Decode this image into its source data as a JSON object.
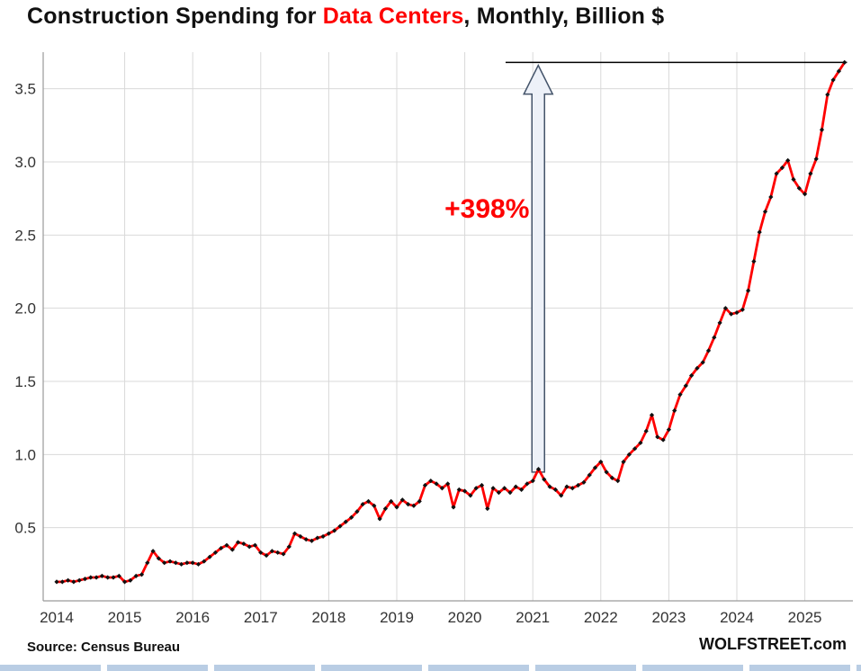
{
  "title": {
    "prefix": "Construction Spending for ",
    "highlight": "Data Centers",
    "suffix": ", Monthly, Billion $"
  },
  "footer": {
    "source": "Source: Census Bureau",
    "site": "WOLFSTREET.com"
  },
  "colors": {
    "line": "#FE0000",
    "accent_red": "#FE0000",
    "marker": "#111111",
    "grid": "#d9d9d9",
    "axis": "#9a9a9a",
    "arrow_fill": "#edf1f8",
    "arrow_stroke": "#44546A",
    "top_line": "#000000",
    "bottom_strip": "#b9cde4",
    "text": "#333333"
  },
  "chart_data": {
    "type": "line",
    "title": "Construction Spending for Data Centers, Monthly, Billion $",
    "xlabel": "",
    "ylabel": "Billion $",
    "ylim": [
      0,
      3.75
    ],
    "y_ticks": [
      0.5,
      1.0,
      1.5,
      2.0,
      2.5,
      3.0,
      3.5
    ],
    "x_labels": [
      "2014",
      "2015",
      "2016",
      "2017",
      "2018",
      "2019",
      "2020",
      "2021",
      "2022",
      "2023",
      "2024",
      "2025"
    ],
    "x_start": {
      "year": 2014,
      "month": 1
    },
    "x_end": {
      "year": 2025,
      "month": 8
    },
    "grid": true,
    "legend": false,
    "series": [
      {
        "name": "Data center construction spending, monthly, billion $",
        "monthly_values": [
          0.13,
          0.13,
          0.14,
          0.13,
          0.14,
          0.15,
          0.16,
          0.16,
          0.17,
          0.16,
          0.16,
          0.17,
          0.13,
          0.14,
          0.17,
          0.18,
          0.26,
          0.34,
          0.29,
          0.26,
          0.27,
          0.26,
          0.25,
          0.26,
          0.26,
          0.25,
          0.27,
          0.3,
          0.33,
          0.36,
          0.38,
          0.35,
          0.4,
          0.39,
          0.37,
          0.38,
          0.33,
          0.31,
          0.34,
          0.33,
          0.32,
          0.37,
          0.46,
          0.44,
          0.42,
          0.41,
          0.43,
          0.44,
          0.46,
          0.48,
          0.51,
          0.54,
          0.57,
          0.61,
          0.66,
          0.68,
          0.65,
          0.56,
          0.63,
          0.68,
          0.64,
          0.69,
          0.66,
          0.65,
          0.68,
          0.79,
          0.82,
          0.8,
          0.77,
          0.8,
          0.64,
          0.76,
          0.75,
          0.72,
          0.77,
          0.79,
          0.63,
          0.77,
          0.74,
          0.77,
          0.74,
          0.78,
          0.76,
          0.8,
          0.82,
          0.9,
          0.83,
          0.78,
          0.76,
          0.72,
          0.78,
          0.77,
          0.79,
          0.81,
          0.86,
          0.91,
          0.95,
          0.88,
          0.84,
          0.82,
          0.95,
          1.0,
          1.04,
          1.08,
          1.16,
          1.27,
          1.12,
          1.1,
          1.17,
          1.3,
          1.41,
          1.47,
          1.54,
          1.59,
          1.63,
          1.71,
          1.8,
          1.9,
          2.0,
          1.96,
          1.97,
          1.99,
          2.12,
          2.32,
          2.52,
          2.66,
          2.76,
          2.92,
          2.96,
          3.01,
          2.88,
          2.82,
          2.78,
          2.92,
          3.02,
          3.22,
          3.46,
          3.56,
          3.62,
          3.68
        ]
      }
    ],
    "annotations": {
      "label": {
        "text": "+398%",
        "x": 2020.95,
        "y": 2.62
      },
      "arrow": {
        "x": 2021.08,
        "base_y": 0.88,
        "tip_y": 3.66
      },
      "top_line": {
        "y": 3.68,
        "x_start": 2020.6,
        "x_end": 2025.62
      }
    }
  }
}
